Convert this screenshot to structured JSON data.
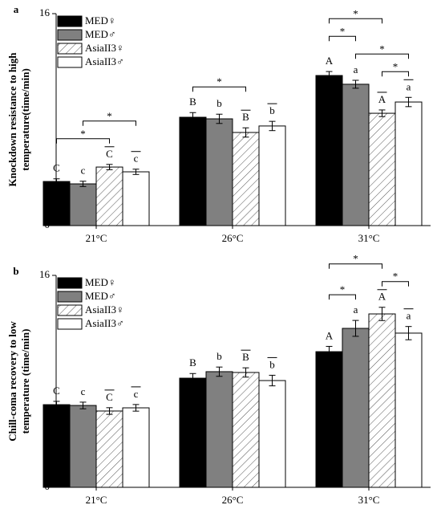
{
  "chart_data": [
    {
      "type": "bar",
      "panel": "a",
      "ylabel": [
        "Knockdown resistance to high",
        "temperature(time/min)"
      ],
      "categories": [
        "21°C",
        "26°C",
        "31°C"
      ],
      "ylim": [
        0,
        16
      ],
      "yticks": [
        0,
        16
      ],
      "series": [
        {
          "name": "MED♀",
          "color": "#000000",
          "hatch": false,
          "overline": false,
          "values": [
            3.33,
            8.18,
            11.33
          ],
          "errors": [
            0.2,
            0.35,
            0.3
          ],
          "letters": [
            "C",
            "B",
            "A"
          ]
        },
        {
          "name": "MED♂",
          "color": "#808080",
          "hatch": false,
          "overline": false,
          "values": [
            3.15,
            8.06,
            10.67
          ],
          "errors": [
            0.2,
            0.35,
            0.3
          ],
          "letters": [
            "c",
            "b",
            "a"
          ]
        },
        {
          "name": "AsiaII3♀",
          "color": "#ffffff",
          "hatch": true,
          "overline": true,
          "values": [
            4.42,
            7.03,
            8.48
          ],
          "errors": [
            0.2,
            0.35,
            0.25
          ],
          "letters": [
            "C",
            "B",
            "A"
          ]
        },
        {
          "name": "AsiaII3♂",
          "color": "#ffffff",
          "hatch": false,
          "overline": true,
          "values": [
            4.06,
            7.52,
            9.33
          ],
          "errors": [
            0.2,
            0.35,
            0.35
          ],
          "letters": [
            "c",
            "b",
            "a"
          ]
        }
      ],
      "brackets": [
        {
          "group": 0,
          "from": 0,
          "to": 2,
          "label": "*"
        },
        {
          "group": 0,
          "from": 1,
          "to": 3,
          "label": "*"
        },
        {
          "group": 1,
          "from": 0,
          "to": 2,
          "label": "*"
        },
        {
          "group": 2,
          "from": 2,
          "to": 3,
          "label": "*"
        },
        {
          "group": 2,
          "from": 1,
          "to": 3,
          "label": "*"
        },
        {
          "group": 2,
          "from": 0,
          "to": 1,
          "label": "*"
        },
        {
          "group": 2,
          "from": 0,
          "to": 2,
          "label": "*"
        }
      ]
    },
    {
      "type": "bar",
      "panel": "b",
      "ylabel": [
        "Chill-coma recovery to low",
        "temperature (time/min)"
      ],
      "categories": [
        "21°C",
        "26°C",
        "31°C"
      ],
      "ylim": [
        0,
        16
      ],
      "yticks": [
        0,
        16
      ],
      "series": [
        {
          "name": "MED♀",
          "color": "#000000",
          "hatch": false,
          "overline": false,
          "values": [
            6.24,
            8.24,
            10.24
          ],
          "errors": [
            0.25,
            0.35,
            0.4
          ],
          "letters": [
            "C",
            "B",
            "A"
          ]
        },
        {
          "name": "MED♂",
          "color": "#808080",
          "hatch": false,
          "overline": false,
          "values": [
            6.18,
            8.73,
            12.0
          ],
          "errors": [
            0.25,
            0.35,
            0.6
          ],
          "letters": [
            "c",
            "b",
            "a"
          ]
        },
        {
          "name": "AsiaII3♀",
          "color": "#ffffff",
          "hatch": true,
          "overline": true,
          "values": [
            5.76,
            8.67,
            13.09
          ],
          "errors": [
            0.25,
            0.35,
            0.5
          ],
          "letters": [
            "C",
            "B",
            "A"
          ]
        },
        {
          "name": "AsiaII3♂",
          "color": "#ffffff",
          "hatch": false,
          "overline": true,
          "values": [
            6.0,
            8.06,
            11.64
          ],
          "errors": [
            0.25,
            0.4,
            0.5
          ],
          "letters": [
            "c",
            "b",
            "a"
          ]
        }
      ],
      "brackets": [
        {
          "group": 2,
          "from": 0,
          "to": 1,
          "label": "*"
        },
        {
          "group": 2,
          "from": 2,
          "to": 3,
          "label": "*"
        },
        {
          "group": 2,
          "from": 0,
          "to": 2,
          "label": "*"
        }
      ]
    }
  ]
}
